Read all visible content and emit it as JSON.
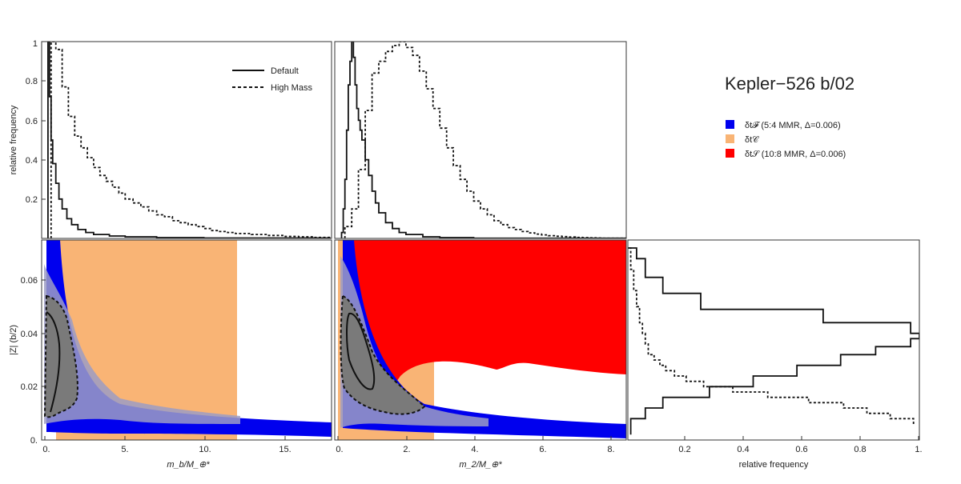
{
  "title": "Kepler−526 b/02",
  "legend_lines": {
    "default": "Default",
    "high_mass": "High Mass"
  },
  "legend_regions": [
    {
      "name": "δt𝓕 (5:4 MMR, Δ=0.006)",
      "color": "#0000ee"
    },
    {
      "name": "δt𝒞",
      "color": "#f9b475"
    },
    {
      "name": "δt𝒮 (10:8 MMR, Δ=0.006)",
      "color": "#ff0000"
    }
  ],
  "axis_labels": {
    "top_y": "relative frequency",
    "bottom_y": "|Z| (b/2)",
    "x_left": "m_b/M_⊕*",
    "x_mid": "m_2/M_⊕*",
    "x_right": "relative frequency"
  },
  "ticks": {
    "freq": [
      "0.2",
      "0.4",
      "0.6",
      "0.8",
      "1"
    ],
    "freq_x": [
      "0.2",
      "0.4",
      "0.6",
      "0.8",
      "1."
    ],
    "z": [
      "0.",
      "0.02",
      "0.04",
      "0.06"
    ],
    "mb": [
      "0.",
      "5.",
      "10.",
      "15."
    ],
    "m2": [
      "0.",
      "2.",
      "4.",
      "6.",
      "8."
    ]
  },
  "chart_data": [
    {
      "type": "line",
      "panel": "mb-histogram",
      "xlim": [
        -0.3,
        18.1
      ],
      "ylim": [
        0,
        1
      ],
      "ylabel": "relative frequency",
      "series": [
        {
          "name": "Default",
          "style": "solid",
          "x": [
            0.1,
            0.2,
            0.3,
            0.4,
            0.6,
            0.8,
            1.0,
            1.3,
            1.6,
            2.0,
            2.5,
            3.0,
            4.0,
            5.0,
            7.0,
            10.0,
            18.0
          ],
          "y": [
            1.0,
            0.72,
            0.5,
            0.38,
            0.28,
            0.2,
            0.15,
            0.1,
            0.07,
            0.045,
            0.03,
            0.02,
            0.012,
            0.008,
            0.004,
            0.002,
            0.0
          ]
        },
        {
          "name": "High Mass",
          "style": "dashed",
          "x": [
            0.3,
            0.6,
            1.0,
            1.4,
            1.8,
            2.2,
            2.6,
            3.0,
            3.4,
            3.8,
            4.2,
            4.6,
            5.0,
            5.5,
            6.0,
            6.5,
            7.0,
            7.5,
            8.0,
            8.5,
            9.0,
            9.5,
            10.0,
            10.5,
            11.0,
            11.5,
            12.0,
            13.0,
            14.0,
            15.0,
            16.0,
            17.0,
            18.0
          ],
          "y": [
            1.0,
            0.96,
            0.77,
            0.62,
            0.52,
            0.46,
            0.41,
            0.36,
            0.32,
            0.29,
            0.26,
            0.23,
            0.2,
            0.18,
            0.16,
            0.14,
            0.12,
            0.11,
            0.09,
            0.08,
            0.07,
            0.06,
            0.05,
            0.04,
            0.035,
            0.03,
            0.025,
            0.02,
            0.015,
            0.01,
            0.008,
            0.005,
            0.0
          ]
        }
      ]
    },
    {
      "type": "line",
      "panel": "m2-histogram",
      "xlim": [
        -0.1,
        8.5
      ],
      "ylim": [
        0,
        1
      ],
      "series": [
        {
          "name": "Default",
          "style": "solid",
          "x": [
            0.1,
            0.15,
            0.2,
            0.25,
            0.3,
            0.35,
            0.4,
            0.45,
            0.5,
            0.55,
            0.6,
            0.65,
            0.7,
            0.8,
            0.9,
            1.0,
            1.1,
            1.2,
            1.4,
            1.6,
            1.8,
            2.0,
            2.5,
            3.0,
            4.0,
            8.5
          ],
          "y": [
            0.03,
            0.15,
            0.3,
            0.55,
            0.78,
            0.9,
            1.0,
            0.92,
            0.78,
            0.66,
            0.6,
            0.55,
            0.5,
            0.4,
            0.32,
            0.24,
            0.18,
            0.13,
            0.08,
            0.05,
            0.03,
            0.02,
            0.008,
            0.004,
            0.001,
            0.0
          ]
        },
        {
          "name": "High Mass",
          "style": "dashed",
          "x": [
            0.2,
            0.4,
            0.6,
            0.8,
            1.0,
            1.2,
            1.4,
            1.6,
            1.8,
            2.0,
            2.2,
            2.4,
            2.6,
            2.8,
            3.0,
            3.2,
            3.4,
            3.6,
            3.8,
            4.0,
            4.2,
            4.4,
            4.6,
            4.8,
            5.0,
            5.2,
            5.4,
            5.6,
            5.8,
            6.0,
            6.2,
            6.4,
            6.6,
            6.8,
            7.0,
            7.2,
            7.4,
            7.6,
            7.8,
            8.0,
            8.5
          ],
          "y": [
            0.06,
            0.15,
            0.35,
            0.65,
            0.84,
            0.9,
            0.95,
            0.98,
            1.0,
            0.97,
            0.93,
            0.85,
            0.76,
            0.66,
            0.56,
            0.46,
            0.37,
            0.3,
            0.24,
            0.19,
            0.15,
            0.12,
            0.09,
            0.07,
            0.055,
            0.045,
            0.035,
            0.028,
            0.022,
            0.018,
            0.014,
            0.011,
            0.009,
            0.007,
            0.005,
            0.004,
            0.003,
            0.002,
            0.001,
            0.001,
            0.0
          ]
        }
      ]
    },
    {
      "type": "line",
      "panel": "z-histogram",
      "xlim": [
        0,
        1
      ],
      "ylim": [
        0,
        0.075
      ],
      "xlabel": "relative frequency",
      "series": [
        {
          "name": "Default",
          "style": "solid",
          "x": [
            0.01,
            0.06,
            0.12,
            0.28,
            0.43,
            0.58,
            0.73,
            0.85,
            0.97,
            1.0,
            0.97,
            0.67,
            0.25,
            0.12,
            0.06,
            0.03,
            0.0
          ],
          "y": [
            0.002,
            0.008,
            0.012,
            0.016,
            0.02,
            0.024,
            0.028,
            0.032,
            0.035,
            0.038,
            0.04,
            0.044,
            0.049,
            0.055,
            0.061,
            0.068,
            0.072
          ]
        },
        {
          "name": "High Mass",
          "style": "dashed",
          "x": [
            0.98,
            0.9,
            0.82,
            0.74,
            0.62,
            0.48,
            0.36,
            0.26,
            0.2,
            0.16,
            0.13,
            0.11,
            0.09,
            0.07,
            0.06,
            0.05,
            0.04,
            0.03,
            0.02,
            0.01,
            0.0
          ],
          "y": [
            0.006,
            0.008,
            0.01,
            0.012,
            0.014,
            0.016,
            0.018,
            0.02,
            0.022,
            0.024,
            0.026,
            0.028,
            0.03,
            0.032,
            0.036,
            0.04,
            0.044,
            0.05,
            0.056,
            0.064,
            0.072
          ]
        }
      ]
    }
  ]
}
